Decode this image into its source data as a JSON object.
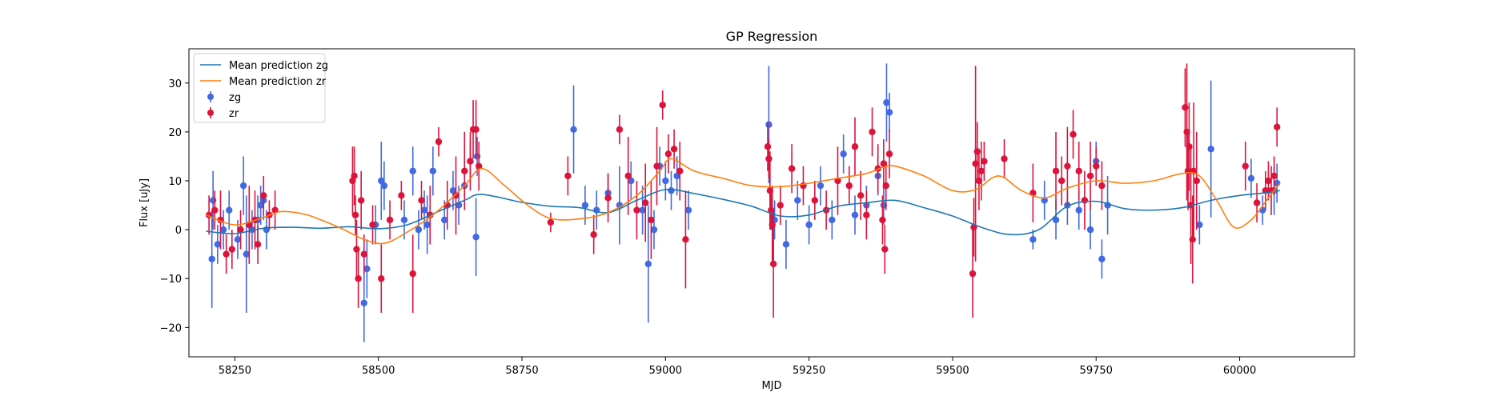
{
  "chart_data": {
    "type": "scatter",
    "title": "GP Regression",
    "xlabel": "MJD",
    "ylabel": "Flux [uJy]",
    "xlim": [
      58170,
      60200
    ],
    "ylim": [
      -26,
      37
    ],
    "xticks": [
      58250,
      58500,
      58750,
      59000,
      59250,
      59500,
      59750,
      60000
    ],
    "yticks": [
      -20,
      -10,
      0,
      10,
      20,
      30
    ],
    "grid": false,
    "legend_position": "top-left",
    "colors": {
      "mean_zg": "#1f77b4",
      "mean_zr": "#ff7f0e",
      "zg": "#4169e1",
      "zr": "#dc143c"
    },
    "legend": [
      {
        "label": "Mean prediction zg",
        "kind": "line",
        "color_key": "mean_zg"
      },
      {
        "label": "Mean prediction zr",
        "kind": "line",
        "color_key": "mean_zr"
      },
      {
        "label": "zg",
        "kind": "errorbar",
        "color_key": "zg"
      },
      {
        "label": "zr",
        "kind": "errorbar",
        "color_key": "zr"
      }
    ],
    "series": [
      {
        "name": "Mean prediction zg",
        "kind": "line",
        "color_key": "mean_zg",
        "x": [
          58200,
          58250,
          58300,
          58350,
          58400,
          58450,
          58500,
          58550,
          58600,
          58650,
          58680,
          58750,
          58800,
          58850,
          58900,
          58950,
          59000,
          59050,
          59100,
          59150,
          59200,
          59250,
          59300,
          59350,
          59400,
          59450,
          59500,
          59550,
          59600,
          59650,
          59700,
          59750,
          59800,
          59850,
          59900,
          59950,
          60000,
          60050,
          60070
        ],
        "y": [
          -0.3,
          -0.8,
          0.3,
          0.5,
          0.3,
          0.6,
          0.2,
          1.0,
          3.5,
          6.0,
          7.2,
          5.6,
          4.8,
          4.5,
          3.5,
          6.0,
          8.2,
          7.4,
          6.2,
          4.8,
          2.8,
          3.0,
          4.8,
          5.5,
          6.0,
          4.5,
          2.8,
          0.5,
          -1.0,
          0.0,
          4.8,
          5.8,
          4.3,
          4.0,
          4.5,
          6.0,
          7.0,
          7.6,
          8.0
        ]
      },
      {
        "name": "Mean prediction zr",
        "kind": "line",
        "color_key": "mean_zr",
        "x": [
          58200,
          58250,
          58300,
          58330,
          58370,
          58400,
          58440,
          58475,
          58510,
          58550,
          58600,
          58650,
          58680,
          58720,
          58760,
          58800,
          58850,
          58900,
          58950,
          58990,
          59010,
          59050,
          59100,
          59150,
          59200,
          59250,
          59300,
          59350,
          59380,
          59400,
          59450,
          59500,
          59540,
          59580,
          59620,
          59660,
          59700,
          59750,
          59800,
          59850,
          59900,
          59930,
          59960,
          59990,
          60020,
          60050,
          60070
        ],
        "y": [
          3.0,
          1.0,
          2.5,
          3.7,
          3.2,
          2.0,
          0.0,
          -2.0,
          -2.8,
          -0.5,
          3.5,
          9.0,
          12.5,
          9.0,
          5.0,
          2.3,
          2.2,
          3.5,
          7.0,
          12.0,
          14.5,
          12.0,
          10.5,
          9.0,
          8.8,
          9.5,
          10.5,
          11.5,
          12.8,
          13.0,
          11.0,
          8.0,
          8.2,
          11.0,
          8.0,
          6.5,
          8.5,
          10.0,
          9.5,
          10.0,
          11.5,
          11.0,
          6.0,
          0.5,
          2.0,
          6.5,
          9.5
        ]
      },
      {
        "name": "zg",
        "kind": "errorbar",
        "color_key": "zg",
        "x": [
          58210,
          58212,
          58220,
          58230,
          58240,
          58255,
          58265,
          58270,
          58280,
          58290,
          58295,
          58300,
          58305,
          58475,
          58480,
          58495,
          58505,
          58510,
          58545,
          58560,
          58570,
          58580,
          58585,
          58595,
          58615,
          58630,
          58640,
          58650,
          58660,
          58670,
          58672,
          58840,
          58860,
          58880,
          58900,
          58920,
          58940,
          58960,
          58970,
          58980,
          58990,
          59000,
          59010,
          59020,
          59040,
          59180,
          59190,
          59210,
          59230,
          59250,
          59270,
          59290,
          59310,
          59330,
          59350,
          59370,
          59380,
          59385,
          59390,
          59640,
          59660,
          59680,
          59700,
          59720,
          59740,
          59750,
          59760,
          59770,
          59910,
          59930,
          59950,
          60020,
          60040,
          60060,
          60065
        ],
        "y": [
          -6,
          6,
          -3,
          0,
          4,
          -2,
          9,
          -5,
          0,
          2,
          5,
          6,
          0,
          -15,
          -8,
          1,
          10,
          9,
          2,
          12,
          0,
          4,
          1,
          12,
          2,
          8,
          5,
          9,
          14,
          -1.5,
          15,
          20.5,
          5,
          4,
          7.5,
          5,
          10,
          4,
          -7,
          0,
          13,
          10,
          8,
          11,
          4,
          21.5,
          2,
          -3,
          6,
          1,
          9,
          2,
          15.5,
          3,
          5,
          11,
          5,
          26,
          24,
          -2,
          6,
          2,
          5,
          4,
          0,
          14,
          -6,
          5,
          12,
          1,
          16.5,
          10.5,
          4,
          8,
          9.5
        ],
        "err": [
          10,
          6,
          4,
          4,
          4,
          4,
          6,
          12,
          4,
          5,
          4,
          4,
          4,
          8,
          6,
          4,
          8,
          5,
          4,
          5,
          4,
          4,
          6,
          5,
          4,
          4,
          4,
          4,
          4,
          8,
          4,
          9,
          4,
          4,
          4,
          8,
          4,
          5,
          12,
          4,
          4,
          4,
          4,
          4,
          4,
          12,
          4,
          5,
          4,
          4,
          4,
          4,
          4,
          4,
          4,
          4,
          4,
          8,
          4,
          2,
          4,
          4,
          4,
          4,
          4,
          4,
          4,
          6,
          5,
          4,
          14,
          4,
          3,
          5,
          4
        ]
      },
      {
        "name": "zr",
        "kind": "errorbar",
        "color_key": "zr",
        "x": [
          58205,
          58215,
          58225,
          58235,
          58245,
          58260,
          58275,
          58285,
          58290,
          58300,
          58310,
          58320,
          58455,
          58458,
          58460,
          58462,
          58465,
          58470,
          58475,
          58490,
          58505,
          58520,
          58540,
          58560,
          58575,
          58590,
          58605,
          58620,
          58635,
          58650,
          58660,
          58665,
          58670,
          58675,
          58800,
          58830,
          58875,
          58900,
          58920,
          58935,
          58950,
          58965,
          58975,
          58985,
          58995,
          59005,
          59015,
          59025,
          59035,
          59178,
          59180,
          59182,
          59184,
          59186,
          59188,
          59200,
          59220,
          59240,
          59260,
          59280,
          59300,
          59320,
          59330,
          59340,
          59350,
          59360,
          59370,
          59378,
          59380,
          59382,
          59384,
          59390,
          59535,
          59537,
          59540,
          59543,
          59546,
          59550,
          59555,
          59590,
          59640,
          59680,
          59690,
          59700,
          59710,
          59720,
          59730,
          59740,
          59750,
          59760,
          59905,
          59908,
          59910,
          59912,
          59915,
          59918,
          59920,
          59925,
          60010,
          60030,
          60045,
          60050,
          60055,
          60060,
          60065
        ],
        "y": [
          3,
          4,
          2,
          -5,
          -4,
          0,
          1,
          2,
          -3,
          7,
          3,
          4,
          10,
          11,
          3,
          -4,
          -10,
          6,
          -5,
          1,
          -10,
          2,
          7,
          -9,
          6,
          3,
          18,
          5,
          7,
          12,
          14,
          20.5,
          20.5,
          13,
          1.5,
          11,
          -1,
          6.5,
          20.5,
          11,
          4,
          5.5,
          2,
          13,
          25.5,
          15.5,
          16.5,
          12,
          -2,
          17,
          14.5,
          8,
          4,
          1,
          -7,
          5,
          12.5,
          9,
          6,
          4,
          10,
          9,
          17,
          7,
          3,
          20,
          12.5,
          2,
          13.5,
          -4,
          9,
          15.5,
          -9,
          0.5,
          13.5,
          16,
          10,
          12,
          14,
          14.5,
          7.5,
          12,
          10,
          13,
          19.5,
          12,
          6,
          11,
          13,
          9,
          25,
          20,
          12,
          17,
          5,
          -2,
          12,
          10,
          13,
          5.5,
          8,
          10,
          8,
          11,
          21
        ],
        "err": [
          4,
          4,
          6,
          4,
          4,
          4,
          8,
          6,
          4,
          4,
          3,
          4,
          7,
          6,
          4,
          6,
          6,
          6,
          4,
          4,
          7,
          4,
          3,
          8,
          4,
          6,
          3,
          5,
          8,
          8,
          6,
          6,
          6,
          5,
          2,
          4,
          4,
          5,
          3,
          8,
          6,
          8,
          8,
          8,
          3,
          4,
          4,
          6,
          10,
          5,
          4,
          8,
          4,
          8,
          11,
          4,
          5,
          4,
          4,
          4,
          7,
          4,
          6,
          5,
          5,
          5,
          5,
          5,
          5,
          5,
          5,
          5,
          9,
          6,
          20,
          6,
          6,
          6,
          4,
          4,
          6,
          8,
          5,
          8,
          5,
          6,
          6,
          7,
          4,
          5,
          8,
          14,
          8,
          9,
          12,
          9,
          14,
          10,
          5,
          4,
          4,
          4,
          5,
          4,
          4
        ]
      }
    ]
  }
}
